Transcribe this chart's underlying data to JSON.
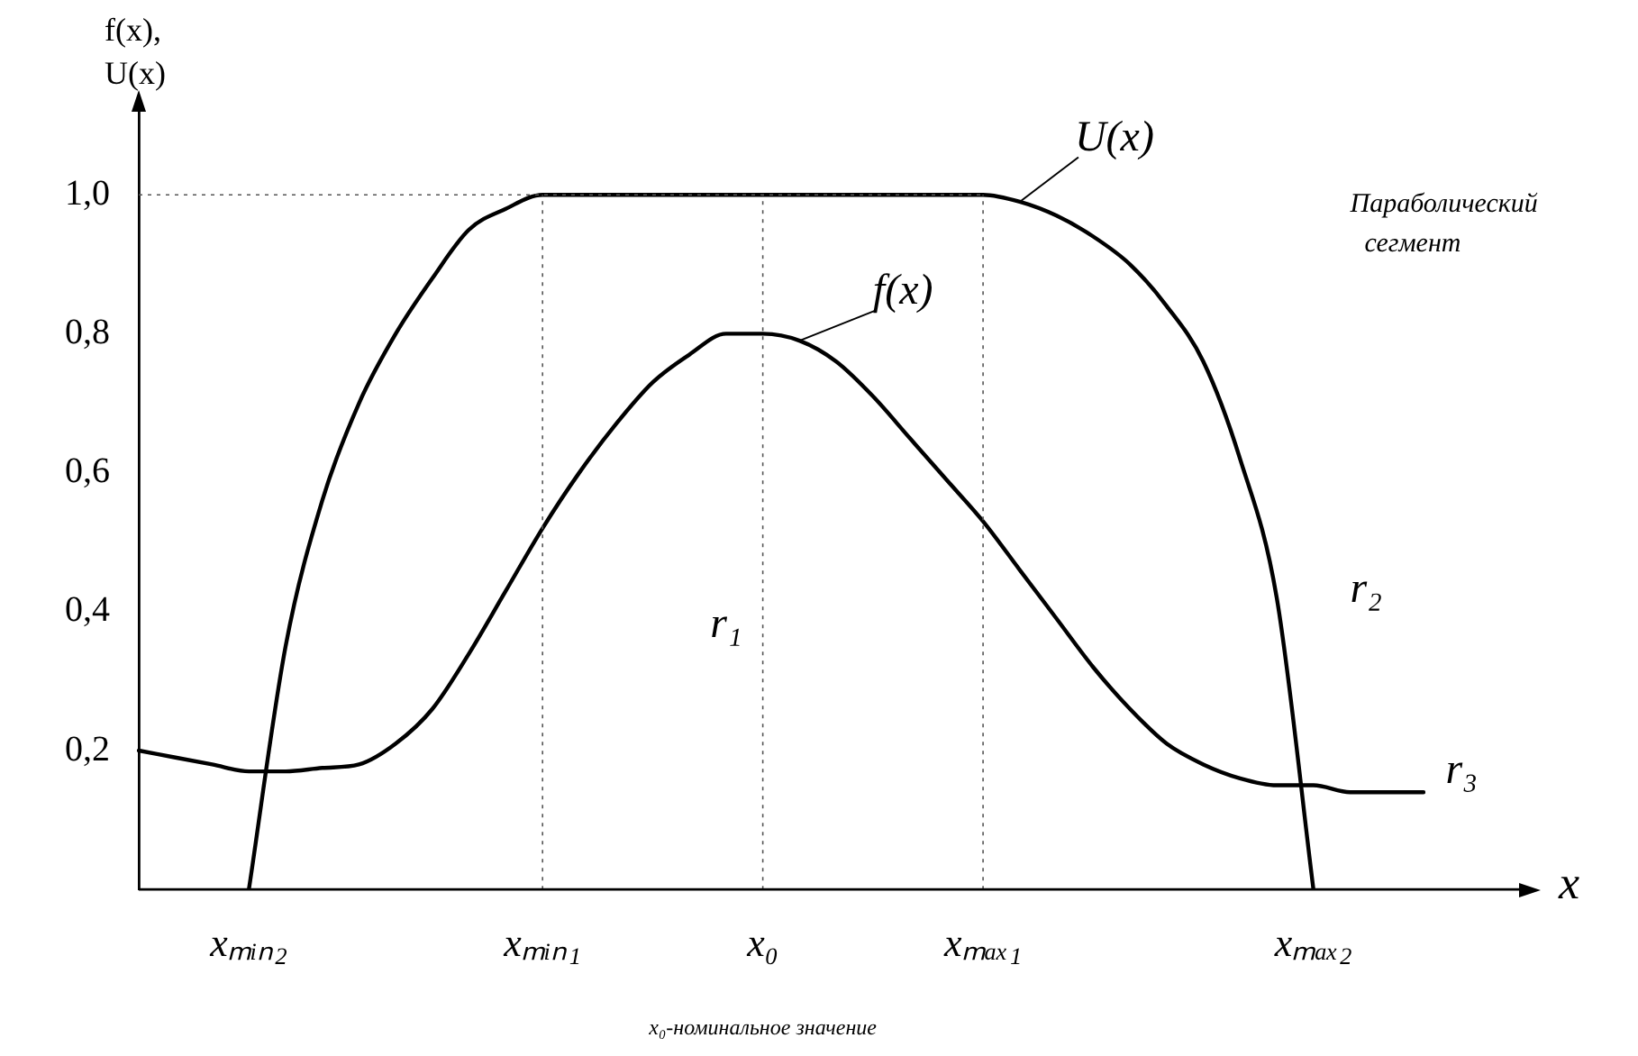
{
  "chart_data": {
    "type": "line",
    "xlabel": "x",
    "ylabel": "f(x), U(x)",
    "categories": [
      null,
      null,
      null,
      "xₘᵢₙ₂",
      null,
      null,
      null,
      null,
      null,
      null,
      null,
      "xₘᵢₙ₁",
      null,
      null,
      null,
      null,
      null,
      "x₀",
      null,
      null,
      null,
      null,
      null,
      "xₘₐₓ₁",
      null,
      null,
      null,
      null,
      null,
      null,
      null,
      null,
      "xₘₐₓ₂",
      null,
      null,
      null
    ],
    "series": [
      {
        "name": "f(x)",
        "color": "#000000",
        "values": [
          0.2,
          0.19,
          0.18,
          0.17,
          0.17,
          0.175,
          0.18,
          0.21,
          0.26,
          0.34,
          0.43,
          0.52,
          0.6,
          0.67,
          0.73,
          0.77,
          0.8,
          0.8,
          0.79,
          0.76,
          0.71,
          0.65,
          0.59,
          0.53,
          0.46,
          0.39,
          0.32,
          0.26,
          0.21,
          0.18,
          0.16,
          0.15,
          0.15,
          0.14,
          0.14,
          0.14
        ]
      },
      {
        "name": "U(x)",
        "color": "#000000",
        "values": [
          null,
          null,
          null,
          0,
          0.35,
          0.56,
          0.7,
          0.8,
          0.88,
          0.95,
          0.98,
          1,
          1,
          1,
          1,
          1,
          1,
          1,
          1,
          1,
          1,
          1,
          1,
          1,
          0.99,
          0.97,
          0.94,
          0.9,
          0.84,
          0.76,
          0.62,
          0.42,
          0,
          null,
          null,
          null
        ]
      }
    ],
    "ylim": [
      0,
      1.13
    ],
    "yticks": [
      {
        "value": 0.2,
        "label": "0,2"
      },
      {
        "value": 0.4,
        "label": "0,4"
      },
      {
        "value": 0.6,
        "label": "0,6"
      },
      {
        "value": 0.8,
        "label": "0,8"
      },
      {
        "value": 1.0,
        "label": "1,0"
      }
    ],
    "ref_lines": [
      {
        "axis": "y",
        "value": 1.0,
        "label": null,
        "line_style": "dotted"
      },
      {
        "axis": "x",
        "value": "xₘᵢₙ₁",
        "label": null,
        "line_style": "dotted"
      },
      {
        "axis": "x",
        "value": "x₀",
        "label": null,
        "line_style": "dotted"
      },
      {
        "axis": "x",
        "value": "xₘₐₓ₁",
        "label": null,
        "line_style": "dotted"
      }
    ],
    "annotations": [
      "Параболический сегмент",
      "r₁",
      "r₂",
      "r₃",
      "x₀-номинальное значение"
    ],
    "grid": false,
    "legend": false,
    "marker": "none",
    "line_style": "solid"
  }
}
